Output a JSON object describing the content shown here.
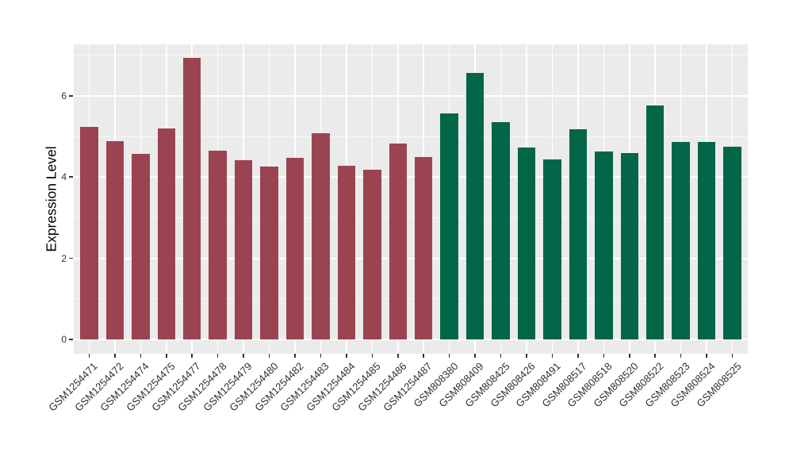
{
  "figure": {
    "background": "#FFFFFF",
    "panel_background": "#EBEBEB",
    "grid_major_color": "#FFFFFF",
    "grid_minor_color": "#F7F7F7",
    "tick_color": "#333333",
    "tick_label_color": "#303030"
  },
  "chart_data": {
    "type": "bar",
    "title": "",
    "xlabel": "",
    "ylabel": "Expression Level",
    "grid": true,
    "legend": "none",
    "y_ticks": [
      0,
      2,
      4,
      6
    ],
    "y_minor_ticks": [
      1,
      3,
      5,
      7
    ],
    "ylim_display": [
      -0.352,
      7.267
    ],
    "categories": [
      "GSM1254471",
      "GSM1254472",
      "GSM1254474",
      "GSM1254475",
      "GSM1254477",
      "GSM1254478",
      "GSM1254479",
      "GSM1254480",
      "GSM1254482",
      "GSM1254483",
      "GSM1254484",
      "GSM1254485",
      "GSM1254486",
      "GSM1254487",
      "GSM808380",
      "GSM808409",
      "GSM808425",
      "GSM808426",
      "GSM808491",
      "GSM808517",
      "GSM808518",
      "GSM808520",
      "GSM808522",
      "GSM808523",
      "GSM808524",
      "GSM808525"
    ],
    "values": [
      5.23,
      4.89,
      4.58,
      5.19,
      6.93,
      4.64,
      4.42,
      4.25,
      4.48,
      5.07,
      4.27,
      4.19,
      4.83,
      4.49,
      5.57,
      6.57,
      5.36,
      4.73,
      4.44,
      5.17,
      4.63,
      4.6,
      5.76,
      4.87,
      4.87,
      4.74
    ],
    "groups": [
      "GSM1254_series",
      "GSM1254_series",
      "GSM1254_series",
      "GSM1254_series",
      "GSM1254_series",
      "GSM1254_series",
      "GSM1254_series",
      "GSM1254_series",
      "GSM1254_series",
      "GSM1254_series",
      "GSM1254_series",
      "GSM1254_series",
      "GSM1254_series",
      "GSM1254_series",
      "GSM808_series",
      "GSM808_series",
      "GSM808_series",
      "GSM808_series",
      "GSM808_series",
      "GSM808_series",
      "GSM808_series",
      "GSM808_series",
      "GSM808_series",
      "GSM808_series",
      "GSM808_series",
      "GSM808_series"
    ],
    "group_colors": {
      "GSM1254_series": "#9A4452",
      "GSM808_series": "#036648"
    }
  }
}
